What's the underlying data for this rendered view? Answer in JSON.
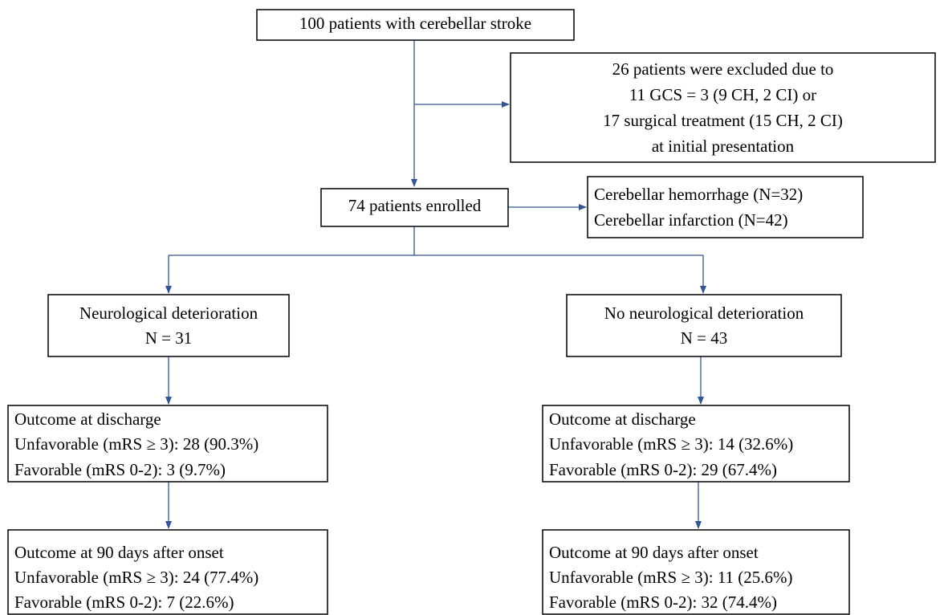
{
  "nodes": [
    {
      "lines": [
        "100 patients with cerebellar stroke"
      ]
    },
    {
      "lines": [
        "26 patients were excluded due to",
        "11 GCS = 3 (9 CH, 2 CI) or",
        "17 surgical treatment (15 CH, 2 CI)",
        "at initial presentation"
      ]
    },
    {
      "lines": [
        "74 patients enrolled"
      ]
    },
    {
      "lines": [
        "Cerebellar hemorrhage (N=32)",
        "Cerebellar infarction (N=42)"
      ]
    },
    {
      "lines": [
        "Neurological deterioration",
        "N = 31"
      ]
    },
    {
      "lines": [
        "No neurological deterioration",
        "N = 43"
      ]
    },
    {
      "lines": [
        "Outcome at discharge",
        "Unfavorable (mRS ≥ 3): 28 (90.3%)",
        "Favorable (mRS 0-2): 3 (9.7%)"
      ]
    },
    {
      "lines": [
        "Outcome at discharge",
        "Unfavorable (mRS ≥ 3): 14 (32.6%)",
        "Favorable (mRS 0-2): 29 (67.4%)"
      ]
    },
    {
      "lines": [
        "Outcome at 90 days after onset",
        "Unfavorable (mRS ≥ 3): 24 (77.4%)",
        "Favorable (mRS 0-2): 7 (22.6%)"
      ]
    },
    {
      "lines": [
        "Outcome at 90 days after onset",
        "Unfavorable (mRS ≥ 3): 11 (25.6%)",
        "Favorable (mRS 0-2): 32 (74.4%)"
      ]
    }
  ]
}
